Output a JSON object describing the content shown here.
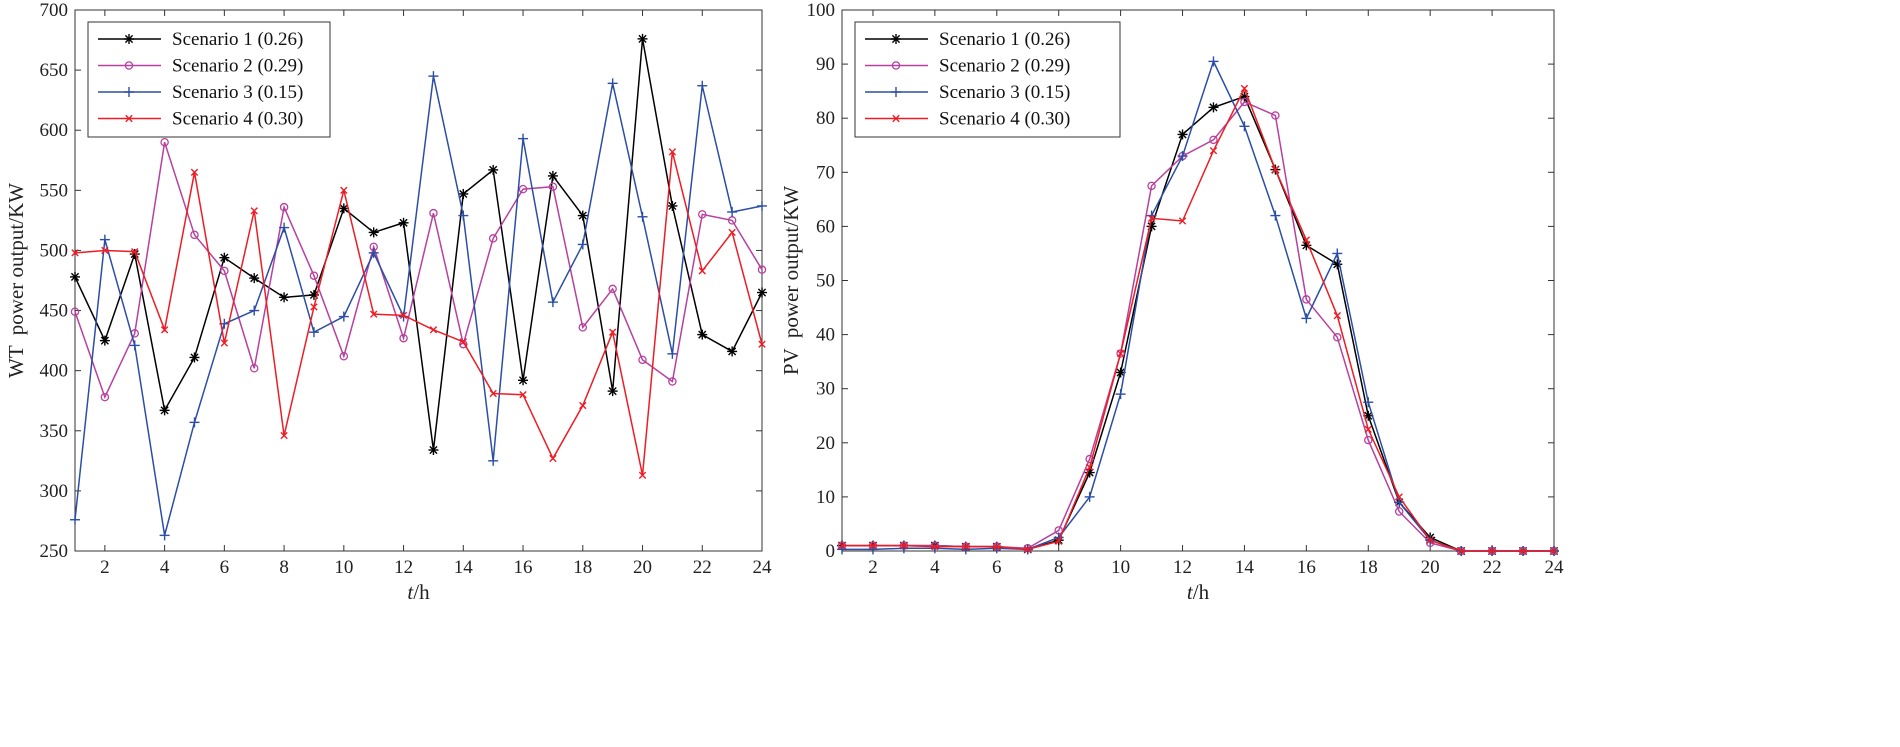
{
  "chart_data": [
    {
      "type": "line",
      "ylabel": "WT  power output/KW",
      "xlabel_italic": "t",
      "xlabel_rest": "/h",
      "xlim": [
        1,
        24
      ],
      "ylim": [
        250,
        700
      ],
      "xticks": [
        2,
        4,
        6,
        8,
        10,
        12,
        14,
        16,
        18,
        20,
        22,
        24
      ],
      "yticks": [
        250,
        300,
        350,
        400,
        450,
        500,
        550,
        600,
        650,
        700
      ],
      "legend_position": "top-left",
      "x": [
        1,
        2,
        3,
        4,
        5,
        6,
        7,
        8,
        9,
        10,
        11,
        12,
        13,
        14,
        15,
        16,
        17,
        18,
        19,
        20,
        21,
        22,
        23,
        24
      ],
      "series": [
        {
          "name": "Scenario 1 (0.26)",
          "color": "#000000",
          "marker": "asterisk",
          "values": [
            478,
            425,
            497,
            367,
            411,
            494,
            477,
            461,
            463,
            535,
            515,
            523,
            334,
            547,
            567,
            392,
            562,
            529,
            383,
            676,
            537,
            430,
            416,
            465
          ]
        },
        {
          "name": "Scenario 2 (0.29)",
          "color": "#b8409e",
          "marker": "circle",
          "values": [
            449,
            378,
            431,
            590,
            513,
            483,
            402,
            536,
            479,
            412,
            503,
            427,
            531,
            422,
            510,
            551,
            553,
            436,
            468,
            409,
            391,
            530,
            525,
            484
          ]
        },
        {
          "name": "Scenario 3 (0.15)",
          "color": "#2b4ea6",
          "marker": "plus",
          "values": [
            276,
            509,
            421,
            263,
            357,
            439,
            450,
            519,
            432,
            445,
            498,
            445,
            645,
            529,
            325,
            593,
            457,
            505,
            639,
            528,
            414,
            637,
            532,
            537
          ]
        },
        {
          "name": "Scenario 4 (0.30)",
          "color": "#ee1c24",
          "marker": "x",
          "values": [
            498,
            500,
            499,
            434,
            565,
            423,
            533,
            346,
            453,
            550,
            447,
            446,
            434,
            424,
            381,
            380,
            327,
            371,
            432,
            313,
            582,
            483,
            515,
            422
          ]
        }
      ]
    },
    {
      "type": "line",
      "ylabel": "PV  power output/KW",
      "xlabel_italic": "t",
      "xlabel_rest": "/h",
      "xlim": [
        1,
        24
      ],
      "ylim": [
        0,
        100
      ],
      "xticks": [
        2,
        4,
        6,
        8,
        10,
        12,
        14,
        16,
        18,
        20,
        22,
        24
      ],
      "yticks": [
        0,
        10,
        20,
        30,
        40,
        50,
        60,
        70,
        80,
        90,
        100
      ],
      "legend_position": "top-left",
      "x": [
        1,
        2,
        3,
        4,
        5,
        6,
        7,
        8,
        9,
        10,
        11,
        12,
        13,
        14,
        15,
        16,
        17,
        18,
        19,
        20,
        21,
        22,
        23,
        24
      ],
      "series": [
        {
          "name": "Scenario 1 (0.26)",
          "color": "#000000",
          "marker": "asterisk",
          "values": [
            1,
            1,
            1,
            1,
            0.8,
            0.8,
            0.3,
            2,
            14.5,
            33,
            60,
            77,
            82,
            84,
            70.5,
            56.5,
            53,
            25,
            9,
            2.5,
            0,
            0,
            0,
            0
          ]
        },
        {
          "name": "Scenario 2 (0.29)",
          "color": "#b8409e",
          "marker": "circle",
          "values": [
            1,
            1,
            1,
            1,
            0.8,
            0.8,
            0.5,
            3.8,
            17,
            36.5,
            67.5,
            73,
            76,
            83,
            80.5,
            46.5,
            39.5,
            20.5,
            7.3,
            1.5,
            0,
            0,
            0,
            0
          ]
        },
        {
          "name": "Scenario 3 (0.15)",
          "color": "#2b4ea6",
          "marker": "plus",
          "values": [
            0.3,
            0.3,
            0.5,
            0.5,
            0.3,
            0.5,
            0.3,
            2.5,
            10,
            29,
            62,
            73,
            90.5,
            78.5,
            62,
            43,
            55,
            27.5,
            9,
            2,
            0,
            0,
            0,
            0
          ]
        },
        {
          "name": "Scenario 4 (0.30)",
          "color": "#ee1c24",
          "marker": "x",
          "values": [
            1,
            1,
            1,
            0.8,
            0.8,
            0.8,
            0.3,
            1.8,
            15.5,
            36.5,
            61.5,
            61,
            74,
            85.5,
            70.5,
            57.5,
            43.5,
            22.5,
            10,
            2,
            0,
            0,
            0,
            0
          ]
        }
      ]
    }
  ]
}
